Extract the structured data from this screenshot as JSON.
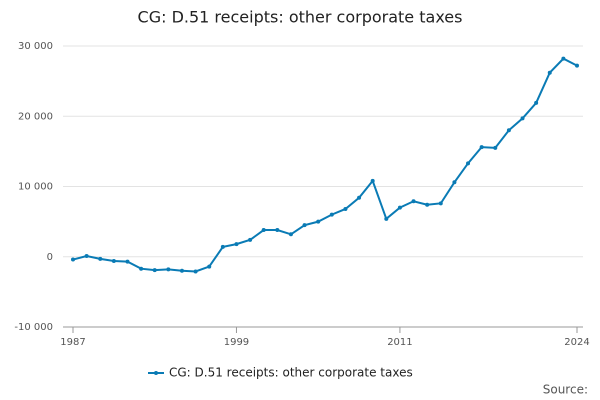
{
  "chart_data": {
    "type": "line",
    "title": "CG: D.51 receipts: other corporate taxes",
    "x": [
      1987,
      1988,
      1989,
      1990,
      1991,
      1992,
      1993,
      1994,
      1995,
      1996,
      1997,
      1998,
      1999,
      2000,
      2001,
      2002,
      2003,
      2004,
      2005,
      2006,
      2007,
      2008,
      2009,
      2010,
      2011,
      2012,
      2013,
      2014,
      2015,
      2016,
      2017,
      2018,
      2019,
      2020,
      2021,
      2022,
      2023,
      2024
    ],
    "series": [
      {
        "name": "CG: D.51 receipts: other corporate taxes",
        "color": "#0a7bb5",
        "values": [
          -400,
          100,
          -300,
          -600,
          -700,
          -1700,
          -1900,
          -1800,
          -2000,
          -2100,
          -1400,
          1400,
          1800,
          2400,
          3800,
          3800,
          3200,
          4500,
          5000,
          6000,
          6800,
          8400,
          10800,
          5400,
          7000,
          7900,
          7400,
          7600,
          10600,
          13300,
          15600,
          15500,
          18000,
          19700,
          21900,
          26200,
          28200,
          27200
        ]
      }
    ],
    "xlim": [
      1987,
      2024
    ],
    "xticks": [
      1987,
      1999,
      2011,
      2024
    ],
    "ylim": [
      -10000,
      30000
    ],
    "yticks": [
      {
        "value": -10000,
        "label": "-10 000"
      },
      0,
      {
        "value": 10000,
        "label": "10 000"
      },
      {
        "value": 20000,
        "label": "20 000"
      },
      {
        "value": 30000,
        "label": "30 000"
      }
    ],
    "grid": true,
    "legend": "bottom",
    "source": "Source:"
  }
}
